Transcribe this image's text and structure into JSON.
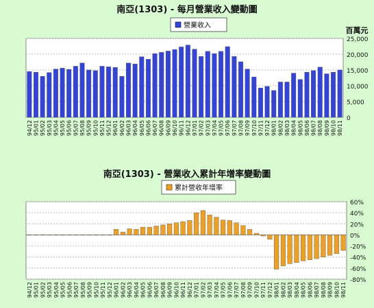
{
  "chart_data": [
    {
      "type": "bar",
      "title": "南亞(1303) - 每月營業收入變動圖",
      "unit_label": "百萬元",
      "legend": [
        "營業收入"
      ],
      "legend_placement": "top-center",
      "color": "#3344dd",
      "ylim": [
        0,
        25000
      ],
      "yticks": [
        "0",
        "5,000",
        "10,000",
        "15,000",
        "20,000",
        "25,000"
      ],
      "grid": true,
      "categories": [
        "94/12",
        "95/01",
        "95/02",
        "95/03",
        "95/04",
        "95/05",
        "95/06",
        "95/07",
        "95/08",
        "95/09",
        "95/10",
        "95/11",
        "95/12",
        "96/01",
        "96/02",
        "96/03",
        "96/04",
        "96/05",
        "96/06",
        "96/07",
        "96/08",
        "96/09",
        "96/10",
        "96/11",
        "96/12",
        "97/01",
        "97/02",
        "97/03",
        "97/04",
        "97/05",
        "97/06",
        "97/07",
        "97/08",
        "97/09",
        "97/10",
        "97/11",
        "97/12",
        "98/01",
        "98/02",
        "98/03",
        "98/04",
        "98/05",
        "98/06",
        "98/07",
        "98/08",
        "98/09",
        "98/10",
        "98/11"
      ],
      "values": [
        14500,
        14300,
        13000,
        14200,
        15300,
        15600,
        15200,
        16200,
        17200,
        15000,
        14800,
        16200,
        16000,
        15800,
        13000,
        17200,
        16900,
        19200,
        18400,
        20200,
        20600,
        21000,
        21500,
        22300,
        22900,
        21600,
        19300,
        20900,
        20200,
        20900,
        22400,
        19300,
        17600,
        15300,
        12800,
        9300,
        9800,
        8500,
        11200,
        11200,
        14000,
        12000,
        14300,
        14800,
        15900,
        13800,
        14300,
        15000
      ]
    },
    {
      "type": "bar",
      "title": "南亞(1303) -  營業收入累計年增率變動圖",
      "legend": [
        "累計營收年增率"
      ],
      "legend_placement": "top-center",
      "color": "#f0a020",
      "ylim": [
        -80,
        60
      ],
      "yticks": [
        "-80%",
        "-60%",
        "-40%",
        "-20%",
        "0%",
        "20%",
        "40%",
        "60%"
      ],
      "grid": true,
      "categories": [
        "94/12",
        "95/01",
        "95/02",
        "95/03",
        "95/04",
        "95/05",
        "95/06",
        "95/07",
        "95/08",
        "95/09",
        "95/10",
        "95/11",
        "95/12",
        "96/01",
        "96/02",
        "96/03",
        "96/04",
        "96/05",
        "96/06",
        "96/07",
        "96/08",
        "96/09",
        "96/10",
        "96/11",
        "96/12",
        "97/01",
        "97/02",
        "97/03",
        "97/04",
        "97/05",
        "97/06",
        "97/07",
        "97/08",
        "97/09",
        "97/10",
        "97/11",
        "97/12",
        "98/01",
        "98/02",
        "98/03",
        "98/04",
        "98/05",
        "98/06",
        "98/07",
        "98/08",
        "98/09",
        "98/10",
        "98/11"
      ],
      "values": [
        0,
        0,
        0,
        0,
        0,
        0,
        0,
        0,
        0,
        0,
        0,
        0,
        0,
        10,
        5,
        11,
        10,
        14,
        14,
        16,
        18,
        20,
        22,
        24,
        26,
        40,
        44,
        36,
        32,
        27,
        26,
        22,
        17,
        10,
        3,
        -2,
        -8,
        -62,
        -56,
        -52,
        -50,
        -47,
        -45,
        -43,
        -40,
        -37,
        -34,
        -28
      ]
    }
  ]
}
